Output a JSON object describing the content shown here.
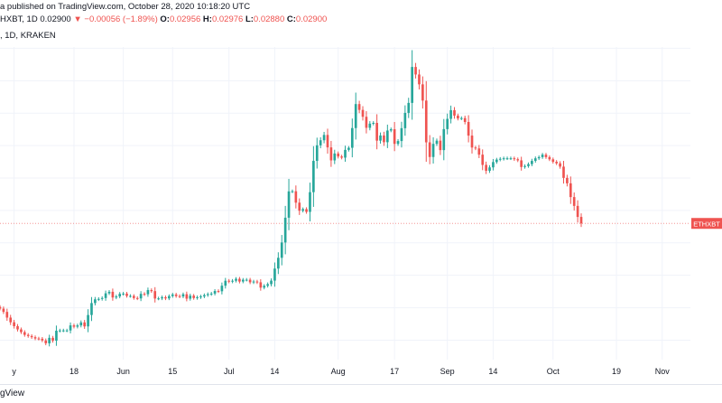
{
  "header": {
    "published_text": "a published on TradingView.com, October 28, 2020 10:18:20 UTC",
    "symbol_prefix": "HXBT, 1D",
    "last_value": "0.02900",
    "change_arrow": "▼",
    "change_text": "−0.00056 (−1.89%)",
    "o_label": "O:",
    "o_value": "0.02956",
    "h_label": "H:",
    "h_value": "0.02976",
    "l_label": "L:",
    "l_value": "0.02880",
    "c_label": "C:",
    "c_value": "0.02900",
    "exchange_line": ", 1D, KRAKEN"
  },
  "price_label": {
    "text": "ETHXBT",
    "color": "#ef5350"
  },
  "footer": {
    "text": "gView"
  },
  "colors": {
    "up": "#26a69a",
    "down": "#ef5350"
  },
  "chart_data": {
    "type": "candlestick",
    "xlim": [
      "2020-04-27",
      "2020-11-09"
    ],
    "x_ticks": [
      {
        "label": "y",
        "date": "2020-05-01"
      },
      {
        "label": "18",
        "date": "2020-05-18"
      },
      {
        "label": "Jun",
        "date": "2020-06-01"
      },
      {
        "label": "15",
        "date": "2020-06-15"
      },
      {
        "label": "Jul",
        "date": "2020-07-01"
      },
      {
        "label": "14",
        "date": "2020-07-14"
      },
      {
        "label": "Aug",
        "date": "2020-08-01"
      },
      {
        "label": "17",
        "date": "2020-08-17"
      },
      {
        "label": "Sep",
        "date": "2020-09-01"
      },
      {
        "label": "14",
        "date": "2020-09-14"
      },
      {
        "label": "Oct",
        "date": "2020-10-01"
      },
      {
        "label": "19",
        "date": "2020-10-19"
      },
      {
        "label": "Nov",
        "date": "2020-11-01"
      }
    ],
    "ylim": [
      0.0185,
      0.0426
    ],
    "last_close": 0.029,
    "closes": [
      0.02243,
      0.02218,
      0.02174,
      0.02138,
      0.02108,
      0.02083,
      0.02062,
      0.02041,
      0.02032,
      0.02023,
      0.02013,
      0.02011,
      0.01998,
      0.01976,
      0.02018,
      0.01996,
      0.02073,
      0.02075,
      0.02075,
      0.02075,
      0.02114,
      0.02104,
      0.02114,
      0.02137,
      0.02106,
      0.02194,
      0.02286,
      0.02315,
      0.02318,
      0.02325,
      0.02361,
      0.02373,
      0.02329,
      0.02337,
      0.02357,
      0.02359,
      0.02341,
      0.02341,
      0.02325,
      0.02322,
      0.02357,
      0.02354,
      0.02386,
      0.02378,
      0.02321,
      0.02322,
      0.02331,
      0.02322,
      0.0234,
      0.02352,
      0.0234,
      0.02337,
      0.02354,
      0.0232,
      0.02343,
      0.02325,
      0.02331,
      0.02337,
      0.02347,
      0.02355,
      0.02359,
      0.02379,
      0.02377,
      0.0242,
      0.02458,
      0.02452,
      0.02458,
      0.02473,
      0.02452,
      0.02466,
      0.02466,
      0.02446,
      0.02452,
      0.02446,
      0.02405,
      0.02419,
      0.02432,
      0.02459,
      0.02552,
      0.02635,
      0.02753,
      0.02944,
      0.03147,
      0.03148,
      0.0306,
      0.02998,
      0.0301,
      0.02989,
      0.03141,
      0.03382,
      0.03502,
      0.03541,
      0.03582,
      0.03486,
      0.03386,
      0.03439,
      0.03416,
      0.03407,
      0.03467,
      0.03483,
      0.03635,
      0.0382,
      0.03775,
      0.03722,
      0.03637,
      0.03669,
      0.03675,
      0.03538,
      0.03578,
      0.03526,
      0.03616,
      0.03626,
      0.03513,
      0.03535,
      0.03634,
      0.03752,
      0.03829,
      0.04106,
      0.04048,
      0.03972,
      0.03847,
      0.03525,
      0.03412,
      0.03513,
      0.03538,
      0.03465,
      0.03627,
      0.03706,
      0.03773,
      0.03731,
      0.03709,
      0.03712,
      0.03682,
      0.03577,
      0.03485,
      0.03478,
      0.0343,
      0.03351,
      0.03306,
      0.03332,
      0.03373,
      0.03392,
      0.03398,
      0.03402,
      0.03402,
      0.03402,
      0.03395,
      0.03386,
      0.03335,
      0.03342,
      0.03357,
      0.03382,
      0.03402,
      0.03411,
      0.0343,
      0.03411,
      0.03394,
      0.03375,
      0.03363,
      0.03338,
      0.03251,
      0.03209,
      0.03103,
      0.03035,
      0.0295,
      0.029
    ],
    "series_labels": []
  }
}
